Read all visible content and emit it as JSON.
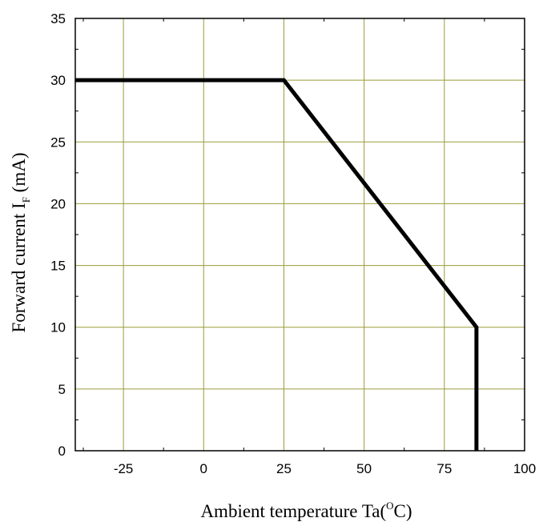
{
  "chart_data": {
    "type": "line",
    "title": "",
    "xlabel": {
      "main": "Ambient temperature Ta(",
      "sup": "O",
      "tail": "C)"
    },
    "ylabel": {
      "main": "Forward current   I",
      "sub": "F",
      "tail": "  (mA)"
    },
    "xlim": [
      -40,
      100
    ],
    "ylim": [
      0,
      35
    ],
    "xticks": [
      -25,
      0,
      25,
      50,
      75,
      100
    ],
    "xtick_labels": [
      "-25",
      "0",
      "25",
      "50",
      "75",
      "100"
    ],
    "yticks": [
      0,
      5,
      10,
      15,
      20,
      25,
      30,
      35
    ],
    "ytick_labels": [
      "0",
      "5",
      "10",
      "15",
      "20",
      "25",
      "30",
      "35"
    ],
    "grid": true,
    "grid_color": "#9b9b3a",
    "line_color": "#000000",
    "series": [
      {
        "x": [
          -40,
          25,
          85,
          85
        ],
        "y": [
          30,
          30,
          10,
          0
        ]
      }
    ]
  }
}
